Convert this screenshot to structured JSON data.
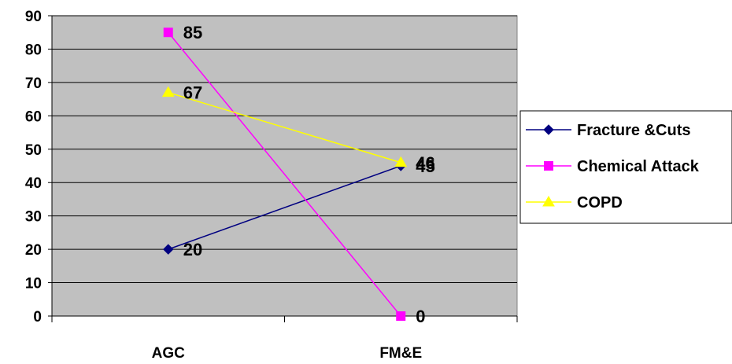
{
  "chart_data": {
    "type": "line",
    "title": "",
    "xlabel": "",
    "ylabel": "",
    "categories": [
      "AGC",
      "FM&E"
    ],
    "ylim": [
      0,
      90
    ],
    "yticks": [
      "0",
      "10",
      "20",
      "30",
      "40",
      "50",
      "60",
      "70",
      "80",
      "90"
    ],
    "grid": true,
    "legend_position": "right",
    "plot_background": "#c0c0c0",
    "series": [
      {
        "name": "Fracture &Cuts",
        "values": [
          20,
          45
        ],
        "labels": [
          "20",
          "45"
        ],
        "color": "#000080",
        "marker": "diamond"
      },
      {
        "name": "Chemical Attack",
        "values": [
          85,
          0
        ],
        "labels": [
          "85",
          "0"
        ],
        "color": "#ff00ff",
        "marker": "square"
      },
      {
        "name": "COPD",
        "values": [
          67,
          46
        ],
        "labels": [
          "67",
          "46"
        ],
        "color": "#ffff00",
        "marker": "triangle"
      }
    ]
  }
}
